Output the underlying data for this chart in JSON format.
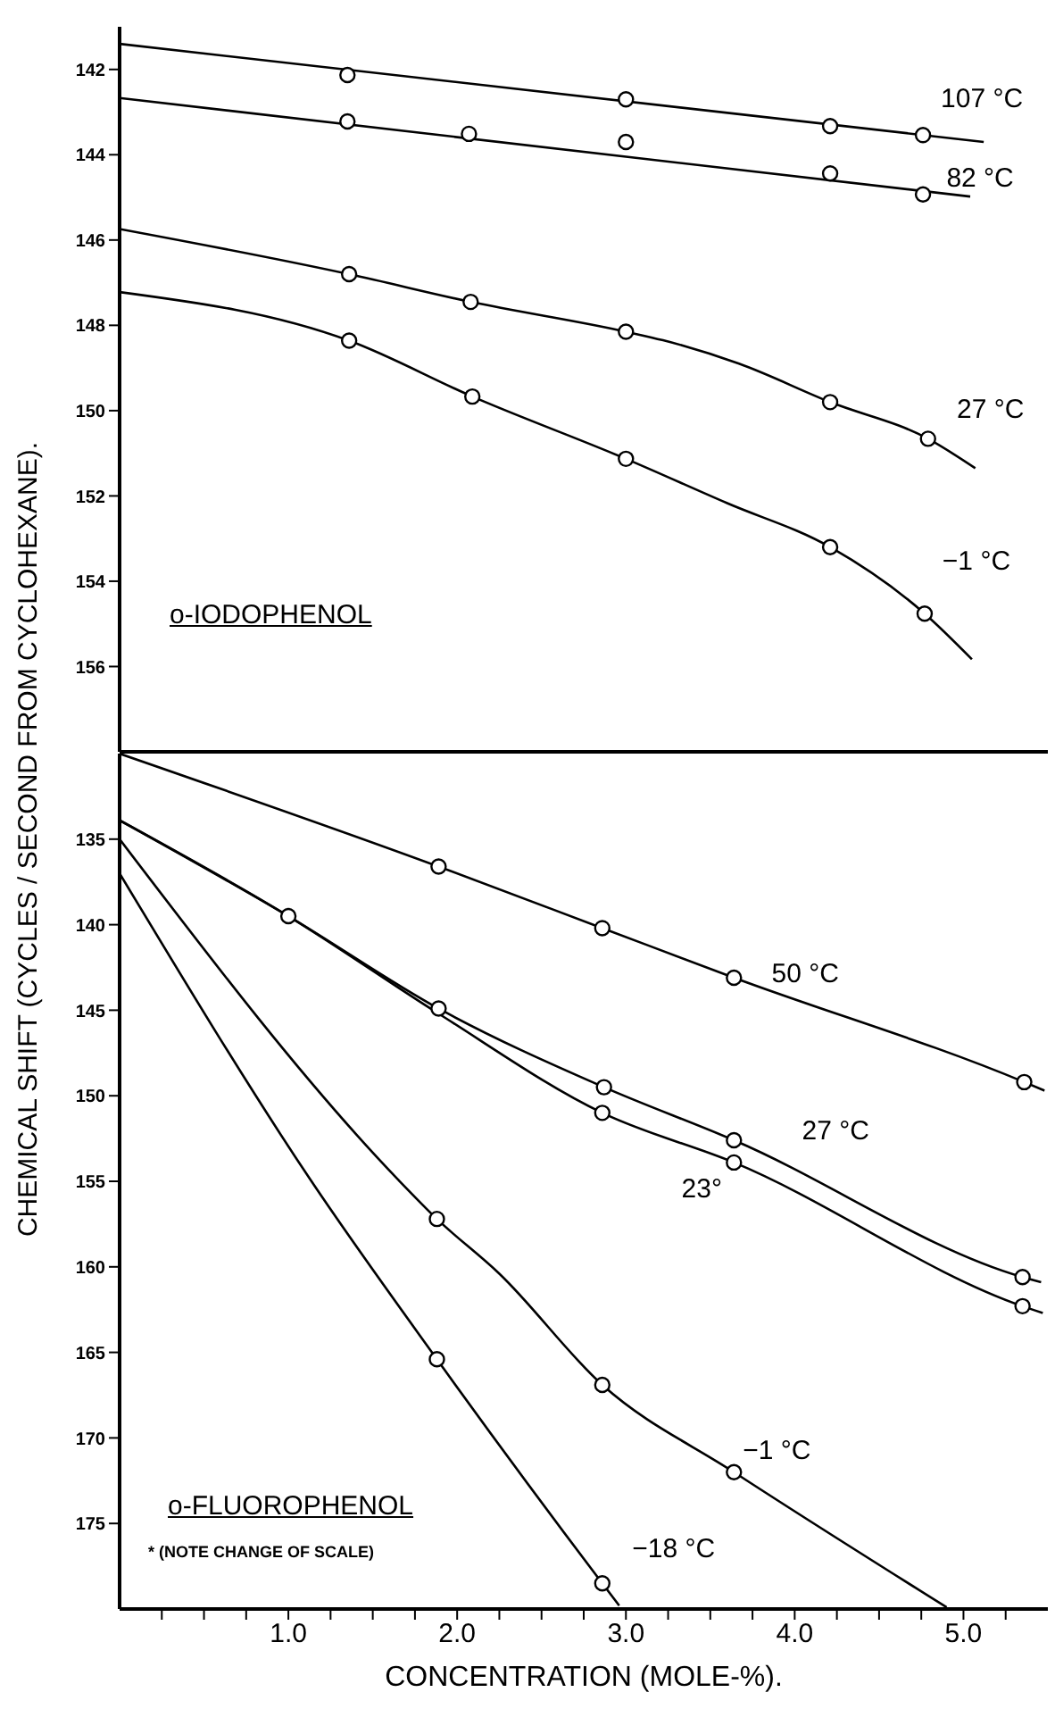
{
  "chart_data": [
    {
      "type": "line",
      "ylabel": "CHEMICAL SHIFT (CYCLES / SECOND FROM CYCLOHEXANE).",
      "annotations": [
        "o-IODOPHENOL"
      ],
      "xlim": [
        0,
        5.5
      ],
      "ylim": [
        158,
        141
      ],
      "yticks": [
        142,
        144,
        146,
        148,
        150,
        152,
        154,
        156
      ],
      "tick_labels": "y",
      "series": [
        {
          "type": "scatter",
          "marker": "circle",
          "name": "107 °C",
          "color": "#000000",
          "x": [
            1.35,
            3.0,
            4.21,
            4.76
          ],
          "values": [
            142.13,
            142.7,
            143.33,
            143.54
          ]
        },
        {
          "color": "#000000",
          "x": [
            0,
            5.12
          ],
          "values": [
            141.4,
            143.7
          ]
        },
        {
          "type": "scatter",
          "marker": "circle",
          "name": "82 °C",
          "color": "#000000",
          "x": [
            1.35,
            2.07,
            3.0,
            4.21,
            4.76
          ],
          "values": [
            143.22,
            143.51,
            143.7,
            144.44,
            144.93
          ]
        },
        {
          "color": "#000000",
          "x": [
            0,
            5.04
          ],
          "values": [
            142.67,
            144.98
          ]
        },
        {
          "type": "scatter",
          "marker": "circle",
          "name": "27 °C",
          "color": "#000000",
          "x": [
            1.36,
            2.08,
            3.0,
            4.21,
            4.79
          ],
          "values": [
            146.8,
            147.45,
            148.15,
            149.8,
            150.66
          ]
        },
        {
          "color": "#000000",
          "x": [
            0,
            1.36,
            2.08,
            3.0,
            3.22,
            3.67,
            4.21,
            4.79,
            5.07
          ],
          "values": [
            145.74,
            146.8,
            147.45,
            148.15,
            148.35,
            148.9,
            149.8,
            150.66,
            151.35
          ]
        },
        {
          "type": "scatter",
          "marker": "circle",
          "name": "−1 °C",
          "color": "#000000",
          "x": [
            1.36,
            2.09,
            3.0,
            4.21,
            4.77
          ],
          "values": [
            148.36,
            149.67,
            151.13,
            153.2,
            154.76
          ]
        },
        {
          "color": "#000000",
          "x": [
            0,
            1.36,
            2.09,
            3.0,
            3.6,
            4.21,
            4.77,
            5.05
          ],
          "values": [
            147.22,
            148.36,
            149.67,
            151.13,
            152.17,
            153.2,
            154.76,
            155.83
          ]
        }
      ]
    },
    {
      "type": "line",
      "xlabel": "CONCENTRATION (MOLE-%).",
      "annotations": [
        "o-FLUOROPHENOL",
        "* (NOTE CHANGE OF SCALE)"
      ],
      "xlim": [
        0,
        5.5
      ],
      "ylim": [
        180,
        130
      ],
      "yticks": [
        135,
        140,
        145,
        150,
        155,
        160,
        165,
        170,
        175
      ],
      "xticks": [
        {
          "value": 0.25,
          "label": null
        },
        {
          "value": 0.5,
          "label": null
        },
        {
          "value": 0.75,
          "label": null
        },
        {
          "value": 1,
          "label": "1.0"
        },
        {
          "value": 1.25,
          "label": null
        },
        {
          "value": 1.5,
          "label": null
        },
        {
          "value": 1.75,
          "label": null
        },
        {
          "value": 2,
          "label": "2.0"
        },
        {
          "value": 2.25,
          "label": null
        },
        {
          "value": 2.5,
          "label": null
        },
        {
          "value": 2.75,
          "label": null
        },
        {
          "value": 3,
          "label": "3.0"
        },
        {
          "value": 3.25,
          "label": null
        },
        {
          "value": 3.5,
          "label": null
        },
        {
          "value": 3.75,
          "label": null
        },
        {
          "value": 4,
          "label": "4.0"
        },
        {
          "value": 4.25,
          "label": null
        },
        {
          "value": 4.5,
          "label": null
        },
        {
          "value": 4.75,
          "label": null
        },
        {
          "value": 5,
          "label": "5.0"
        },
        {
          "value": 5.25,
          "label": null
        }
      ],
      "series": [
        {
          "type": "scatter",
          "marker": "circle",
          "name": "50 °C",
          "color": "#000000",
          "x": [
            1.89,
            2.86,
            3.64,
            5.36
          ],
          "values": [
            136.6,
            140.2,
            143.1,
            149.2
          ]
        },
        {
          "color": "#000000",
          "x": [
            0,
            1.89,
            2.86,
            3.64,
            5.36,
            5.48
          ],
          "values": [
            130,
            136.6,
            140.2,
            143.1,
            149.2,
            149.7
          ]
        },
        {
          "type": "scatter",
          "marker": "circle",
          "name": "27 °C",
          "color": "#000000",
          "x": [
            1.0,
            1.89,
            2.87,
            3.64,
            5.35
          ],
          "values": [
            139.5,
            144.9,
            149.5,
            152.6,
            160.6
          ]
        },
        {
          "color": "#000000",
          "x": [
            0,
            1.0,
            1.89,
            2.87,
            3.64,
            5.35,
            5.46
          ],
          "values": [
            133.9,
            139.5,
            144.9,
            149.5,
            152.6,
            160.6,
            160.9
          ]
        },
        {
          "type": "scatter",
          "marker": "circle",
          "name": "23°",
          "color": "#000000",
          "x": [
            2.86,
            3.64,
            5.35
          ],
          "values": [
            151.0,
            153.9,
            162.3
          ]
        },
        {
          "color": "#000000",
          "x": [
            0,
            1.0,
            1.89,
            2.86,
            3.64,
            5.35,
            5.47
          ],
          "values": [
            133.9,
            139.5,
            145.2,
            151.0,
            153.9,
            162.3,
            162.7
          ]
        },
        {
          "type": "scatter",
          "marker": "circle",
          "name": "−1 °C",
          "color": "#000000",
          "x": [
            1.88,
            2.86,
            3.64
          ],
          "values": [
            157.2,
            166.9,
            172.0
          ]
        },
        {
          "color": "#000000",
          "x": [
            0,
            1.65,
            1.88,
            2.25,
            2.86,
            3.64,
            4.9
          ],
          "values": [
            135.0,
            154.9,
            157.2,
            160.4,
            166.9,
            172.0,
            179.9
          ]
        },
        {
          "type": "scatter",
          "marker": "circle",
          "name": "−18 °C",
          "color": "#000000",
          "x": [
            1.88,
            2.86
          ],
          "values": [
            165.4,
            178.5
          ]
        },
        {
          "color": "#000000",
          "x": [
            0,
            1.13,
            1.88,
            2.86,
            2.96
          ],
          "values": [
            137.0,
            154.9,
            165.4,
            178.5,
            179.8
          ]
        }
      ]
    }
  ]
}
